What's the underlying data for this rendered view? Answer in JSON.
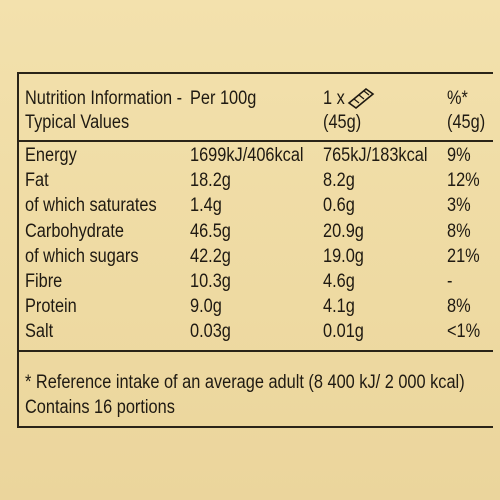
{
  "table": {
    "header": [
      [
        "Nutrition Information -",
        "Typical Values"
      ],
      [
        "Per 100g"
      ],
      [
        "1 x",
        "(45g)"
      ],
      [
        "%*",
        "(45g)"
      ]
    ],
    "rows": [
      [
        "Energy",
        "1699kJ/406kcal",
        "765kJ/183kcal",
        "9%"
      ],
      [
        "Fat",
        "18.2g",
        "8.2g",
        "12%"
      ],
      [
        "of which saturates",
        "1.4g",
        "0.6g",
        "3%"
      ],
      [
        "Carbohydrate",
        "46.5g",
        "20.9g",
        "8%"
      ],
      [
        "of which sugars",
        "42.2g",
        "19.0g",
        "21%"
      ],
      [
        "Fibre",
        "10.3g",
        "4.6g",
        "-"
      ],
      [
        "Protein",
        "9.0g",
        "4.1g",
        "8%"
      ],
      [
        "Salt",
        "0.03g",
        "0.01g",
        "<1%"
      ]
    ]
  },
  "footnotes": [
    "* Reference intake of an average adult (8 400 kJ/ 2 000 kcal)",
    "Contains 16 portions"
  ]
}
